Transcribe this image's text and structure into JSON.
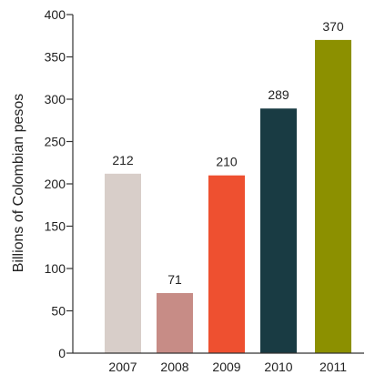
{
  "chart_data": {
    "type": "bar",
    "title": "",
    "xlabel": "",
    "ylabel": "Billions of Colombian pesos",
    "categories": [
      "2007",
      "2008",
      "2009",
      "2010",
      "2011"
    ],
    "values": [
      212,
      71,
      210,
      289,
      370
    ],
    "value_labels": [
      "212",
      "71",
      "210",
      "289",
      "370"
    ],
    "colors": [
      "#d8cec9",
      "#c78c86",
      "#ee5030",
      "#193b43",
      "#8c9000"
    ],
    "ylim": [
      0,
      400
    ],
    "yticks": [
      0,
      50,
      100,
      150,
      200,
      250,
      300,
      350,
      400
    ],
    "ytick_labels": [
      "0",
      "50",
      "100",
      "150",
      "200",
      "250",
      "300",
      "350",
      "400"
    ],
    "grid": false,
    "legend": "none"
  }
}
